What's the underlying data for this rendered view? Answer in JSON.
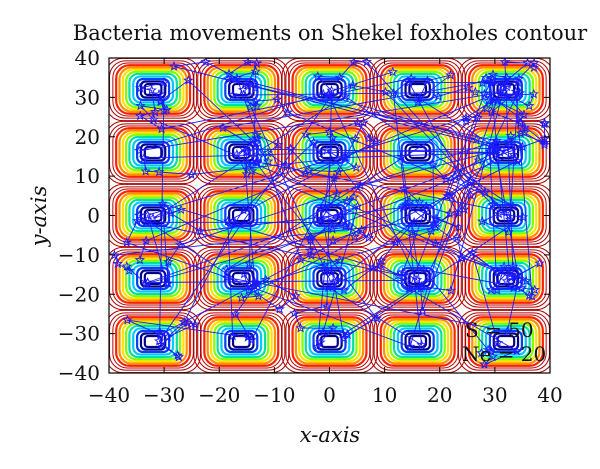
{
  "chart_data": {
    "type": "scatter",
    "title": "Bacteria movements on Shekel foxholes contour",
    "xlabel": "x-axis",
    "ylabel": "y-axis",
    "xlim": [
      -40,
      40
    ],
    "ylim": [
      -40,
      40
    ],
    "x_ticks": [
      -40,
      -30,
      -20,
      -10,
      0,
      10,
      20,
      30,
      40
    ],
    "y_ticks": [
      -40,
      -30,
      -20,
      -10,
      0,
      10,
      20,
      30,
      40
    ],
    "grid": false,
    "annotations": [
      "S = 50",
      "Ne = 20"
    ],
    "contour_centers": {
      "x": [
        -32,
        -16,
        0,
        16,
        32
      ],
      "y": [
        -32,
        -16,
        0,
        16,
        32
      ]
    },
    "contour_colors": [
      "#b00000",
      "#ff2000",
      "#ff9000",
      "#ffe000",
      "#80ff00",
      "#00e0a0",
      "#00c8ff",
      "#0040ff",
      "#00008c"
    ],
    "path_color": "#1a1aff",
    "path_marker": "star"
  }
}
